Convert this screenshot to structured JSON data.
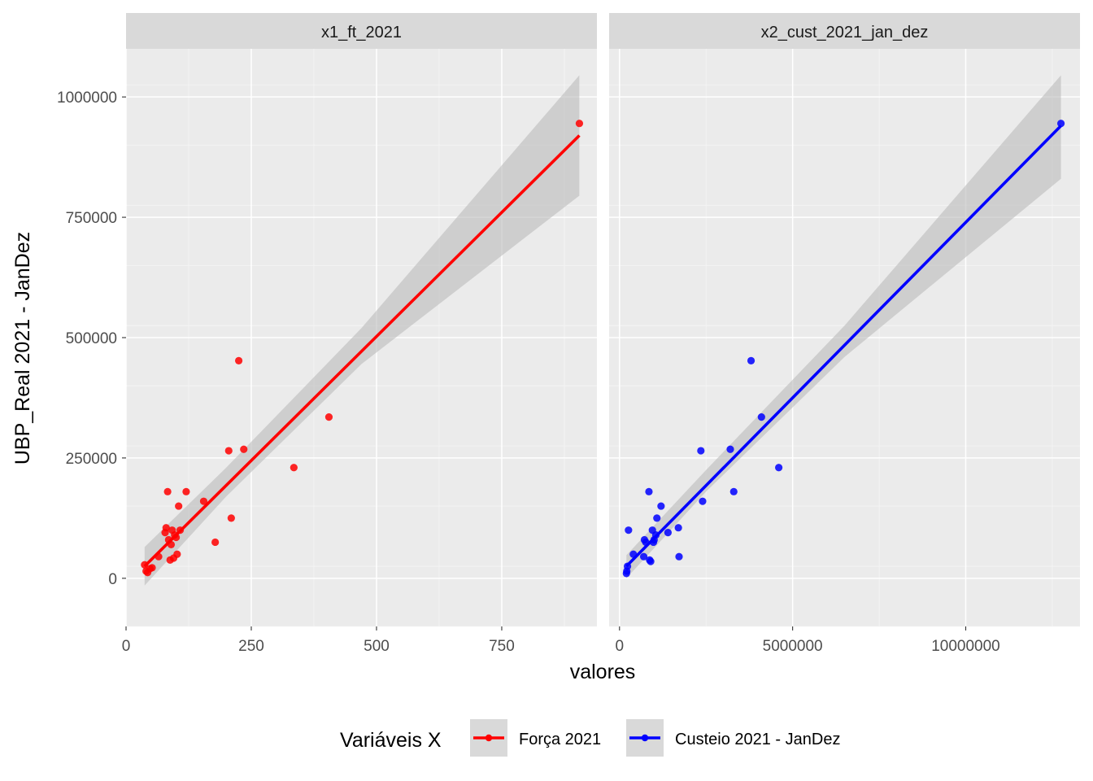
{
  "chart_data": {
    "type": "scatter",
    "ylabel": "UBP_Real 2021 - JanDez",
    "xlabel": "valores",
    "legend": {
      "title": "Variáveis X",
      "position": "bottom",
      "items": [
        {
          "label": "Força 2021",
          "color": "#ff0000"
        },
        {
          "label": "Custeio 2021 - JanDez",
          "color": "#0000ff"
        }
      ]
    },
    "grid": true,
    "background": "#ebebeb",
    "ylim": [
      -100000,
      1100000
    ],
    "yticks": [
      0,
      250000,
      500000,
      750000,
      1000000
    ],
    "ytick_labels": [
      "0",
      "250000",
      "500000",
      "750000",
      "1000000"
    ],
    "band_color": "#bdbdbd",
    "panels": [
      {
        "strip": "x1_ft_2021",
        "color": "#ff0000",
        "xlim": [
          0,
          940
        ],
        "xticks": [
          0,
          250,
          500,
          750
        ],
        "xtick_labels": [
          "0",
          "250",
          "500",
          "750"
        ],
        "points": [
          [
            37,
            28000
          ],
          [
            40,
            15000
          ],
          [
            43,
            12000
          ],
          [
            48,
            20000
          ],
          [
            52,
            22000
          ],
          [
            65,
            45000
          ],
          [
            78,
            95000
          ],
          [
            80,
            105000
          ],
          [
            83,
            180000
          ],
          [
            85,
            80000
          ],
          [
            88,
            38000
          ],
          [
            90,
            70000
          ],
          [
            92,
            100000
          ],
          [
            95,
            42000
          ],
          [
            97,
            90000
          ],
          [
            100,
            85000
          ],
          [
            102,
            50000
          ],
          [
            105,
            150000
          ],
          [
            108,
            100000
          ],
          [
            120,
            180000
          ],
          [
            155,
            160000
          ],
          [
            178,
            75000
          ],
          [
            205,
            265000
          ],
          [
            210,
            125000
          ],
          [
            225,
            452000
          ],
          [
            235,
            268000
          ],
          [
            335,
            230000
          ],
          [
            405,
            335000
          ],
          [
            905,
            945000
          ]
        ],
        "fit": {
          "x": [
            37,
            905
          ],
          "y": [
            25000,
            920000
          ]
        },
        "band": [
          {
            "x": 37,
            "lower": -15000,
            "upper": 65000
          },
          {
            "x": 200,
            "lower": 170000,
            "upper": 230000
          },
          {
            "x": 470,
            "lower": 445000,
            "upper": 520000
          },
          {
            "x": 905,
            "lower": 795000,
            "upper": 1045000
          }
        ]
      },
      {
        "strip": "x2_cust_2021_jan_dez",
        "color": "#0000ff",
        "xlim": [
          -300000,
          13300000
        ],
        "xticks": [
          0,
          5000000,
          10000000
        ],
        "xtick_labels": [
          "0",
          "5000000",
          "10000000"
        ],
        "points": [
          [
            200000,
            10000
          ],
          [
            210000,
            15000
          ],
          [
            230000,
            25000
          ],
          [
            260000,
            100000
          ],
          [
            400000,
            50000
          ],
          [
            700000,
            45000
          ],
          [
            720000,
            80000
          ],
          [
            760000,
            75000
          ],
          [
            850000,
            180000
          ],
          [
            870000,
            38000
          ],
          [
            900000,
            35000
          ],
          [
            950000,
            100000
          ],
          [
            980000,
            75000
          ],
          [
            1000000,
            80000
          ],
          [
            1050000,
            90000
          ],
          [
            1080000,
            125000
          ],
          [
            1200000,
            150000
          ],
          [
            1400000,
            95000
          ],
          [
            1700000,
            105000
          ],
          [
            1720000,
            45000
          ],
          [
            2350000,
            265000
          ],
          [
            2400000,
            160000
          ],
          [
            3200000,
            268000
          ],
          [
            3300000,
            180000
          ],
          [
            3800000,
            452000
          ],
          [
            4100000,
            335000
          ],
          [
            4600000,
            230000
          ],
          [
            12750000,
            945000
          ]
        ],
        "fit": {
          "x": [
            200000,
            12750000
          ],
          "y": [
            25000,
            940000
          ]
        },
        "band": [
          {
            "x": 200000,
            "lower": 0,
            "upper": 48000
          },
          {
            "x": 2500000,
            "lower": 180000,
            "upper": 225000
          },
          {
            "x": 6500000,
            "lower": 460000,
            "upper": 525000
          },
          {
            "x": 12750000,
            "lower": 830000,
            "upper": 1045000
          }
        ]
      }
    ]
  }
}
